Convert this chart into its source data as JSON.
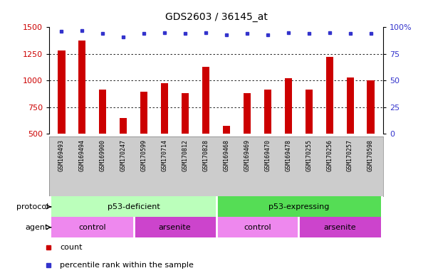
{
  "title": "GDS2603 / 36145_at",
  "samples": [
    "GSM169493",
    "GSM169494",
    "GSM169900",
    "GSM170247",
    "GSM170599",
    "GSM170714",
    "GSM170812",
    "GSM170828",
    "GSM169468",
    "GSM169469",
    "GSM169470",
    "GSM169478",
    "GSM170255",
    "GSM170256",
    "GSM170257",
    "GSM170598"
  ],
  "counts": [
    1285,
    1375,
    915,
    645,
    895,
    975,
    885,
    1130,
    575,
    880,
    915,
    1020,
    915,
    1220,
    1030,
    1005
  ],
  "percentile_ranks": [
    96,
    97,
    94,
    91,
    94,
    95,
    94,
    95,
    93,
    94,
    93,
    95,
    94,
    95,
    94,
    94
  ],
  "bar_color": "#cc0000",
  "dot_color": "#3333cc",
  "ylim_left": [
    500,
    1500
  ],
  "ylim_right": [
    0,
    100
  ],
  "yticks_left": [
    500,
    750,
    1000,
    1250,
    1500
  ],
  "yticks_right": [
    0,
    25,
    50,
    75,
    100
  ],
  "protocol_labels": [
    "p53-deficient",
    "p53-expressing"
  ],
  "protocol_ranges": [
    [
      0,
      8
    ],
    [
      8,
      16
    ]
  ],
  "protocol_color_light": "#bbffbb",
  "protocol_color_dark": "#55dd55",
  "agent_labels": [
    "control",
    "arsenite",
    "control",
    "arsenite"
  ],
  "agent_ranges": [
    [
      0,
      4
    ],
    [
      4,
      8
    ],
    [
      8,
      12
    ],
    [
      12,
      16
    ]
  ],
  "agent_color_light": "#ee88ee",
  "agent_color_dark": "#cc44cc",
  "legend_count_label": "count",
  "legend_pct_label": "percentile rank within the sample",
  "left_color": "#cc0000",
  "right_color": "#3333cc",
  "tick_bg_color": "#cccccc",
  "bar_width": 0.35
}
